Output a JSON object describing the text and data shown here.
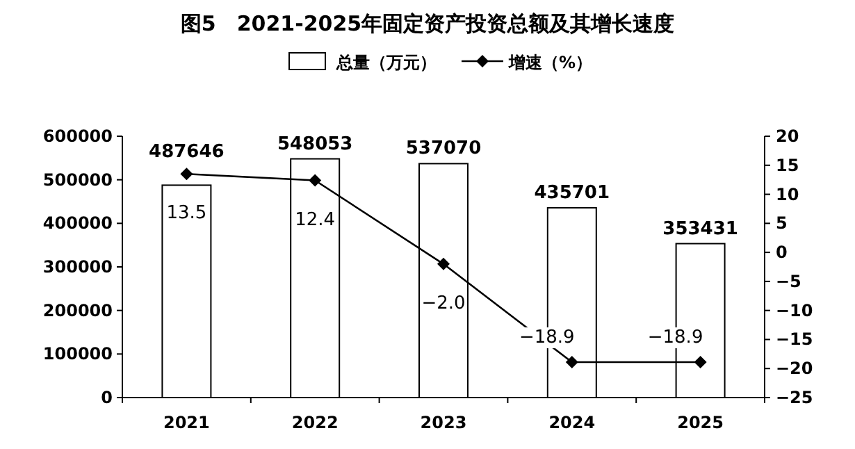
{
  "chart_data": {
    "type": "bar",
    "title": "图5　2021-2025年固定资产投资总额及其增长速度",
    "categories": [
      "2021",
      "2022",
      "2023",
      "2024",
      "2025"
    ],
    "series": [
      {
        "name": "总量（万元）",
        "color": "#ffffff",
        "values": [
          487646,
          548053,
          537070,
          435701,
          353431
        ]
      },
      {
        "name": "增速（%）",
        "type": "line",
        "axis": "y2",
        "color": "#000000",
        "marker": "diamond",
        "values": [
          13.5,
          12.4,
          -2.0,
          -18.9,
          -18.9
        ],
        "value_labels": [
          "13.5",
          "12.4",
          "−2.0",
          "−18.9",
          "−18.9"
        ]
      }
    ],
    "data_labels": true,
    "legend": "top",
    "ylim": [
      0,
      600000
    ],
    "yticks": [
      0,
      100000,
      200000,
      300000,
      400000,
      500000,
      600000
    ],
    "y2lim": [
      -25,
      20
    ],
    "y2ticks": [
      -25,
      -20,
      -15,
      -10,
      -5,
      0,
      5,
      10,
      15,
      20
    ]
  }
}
